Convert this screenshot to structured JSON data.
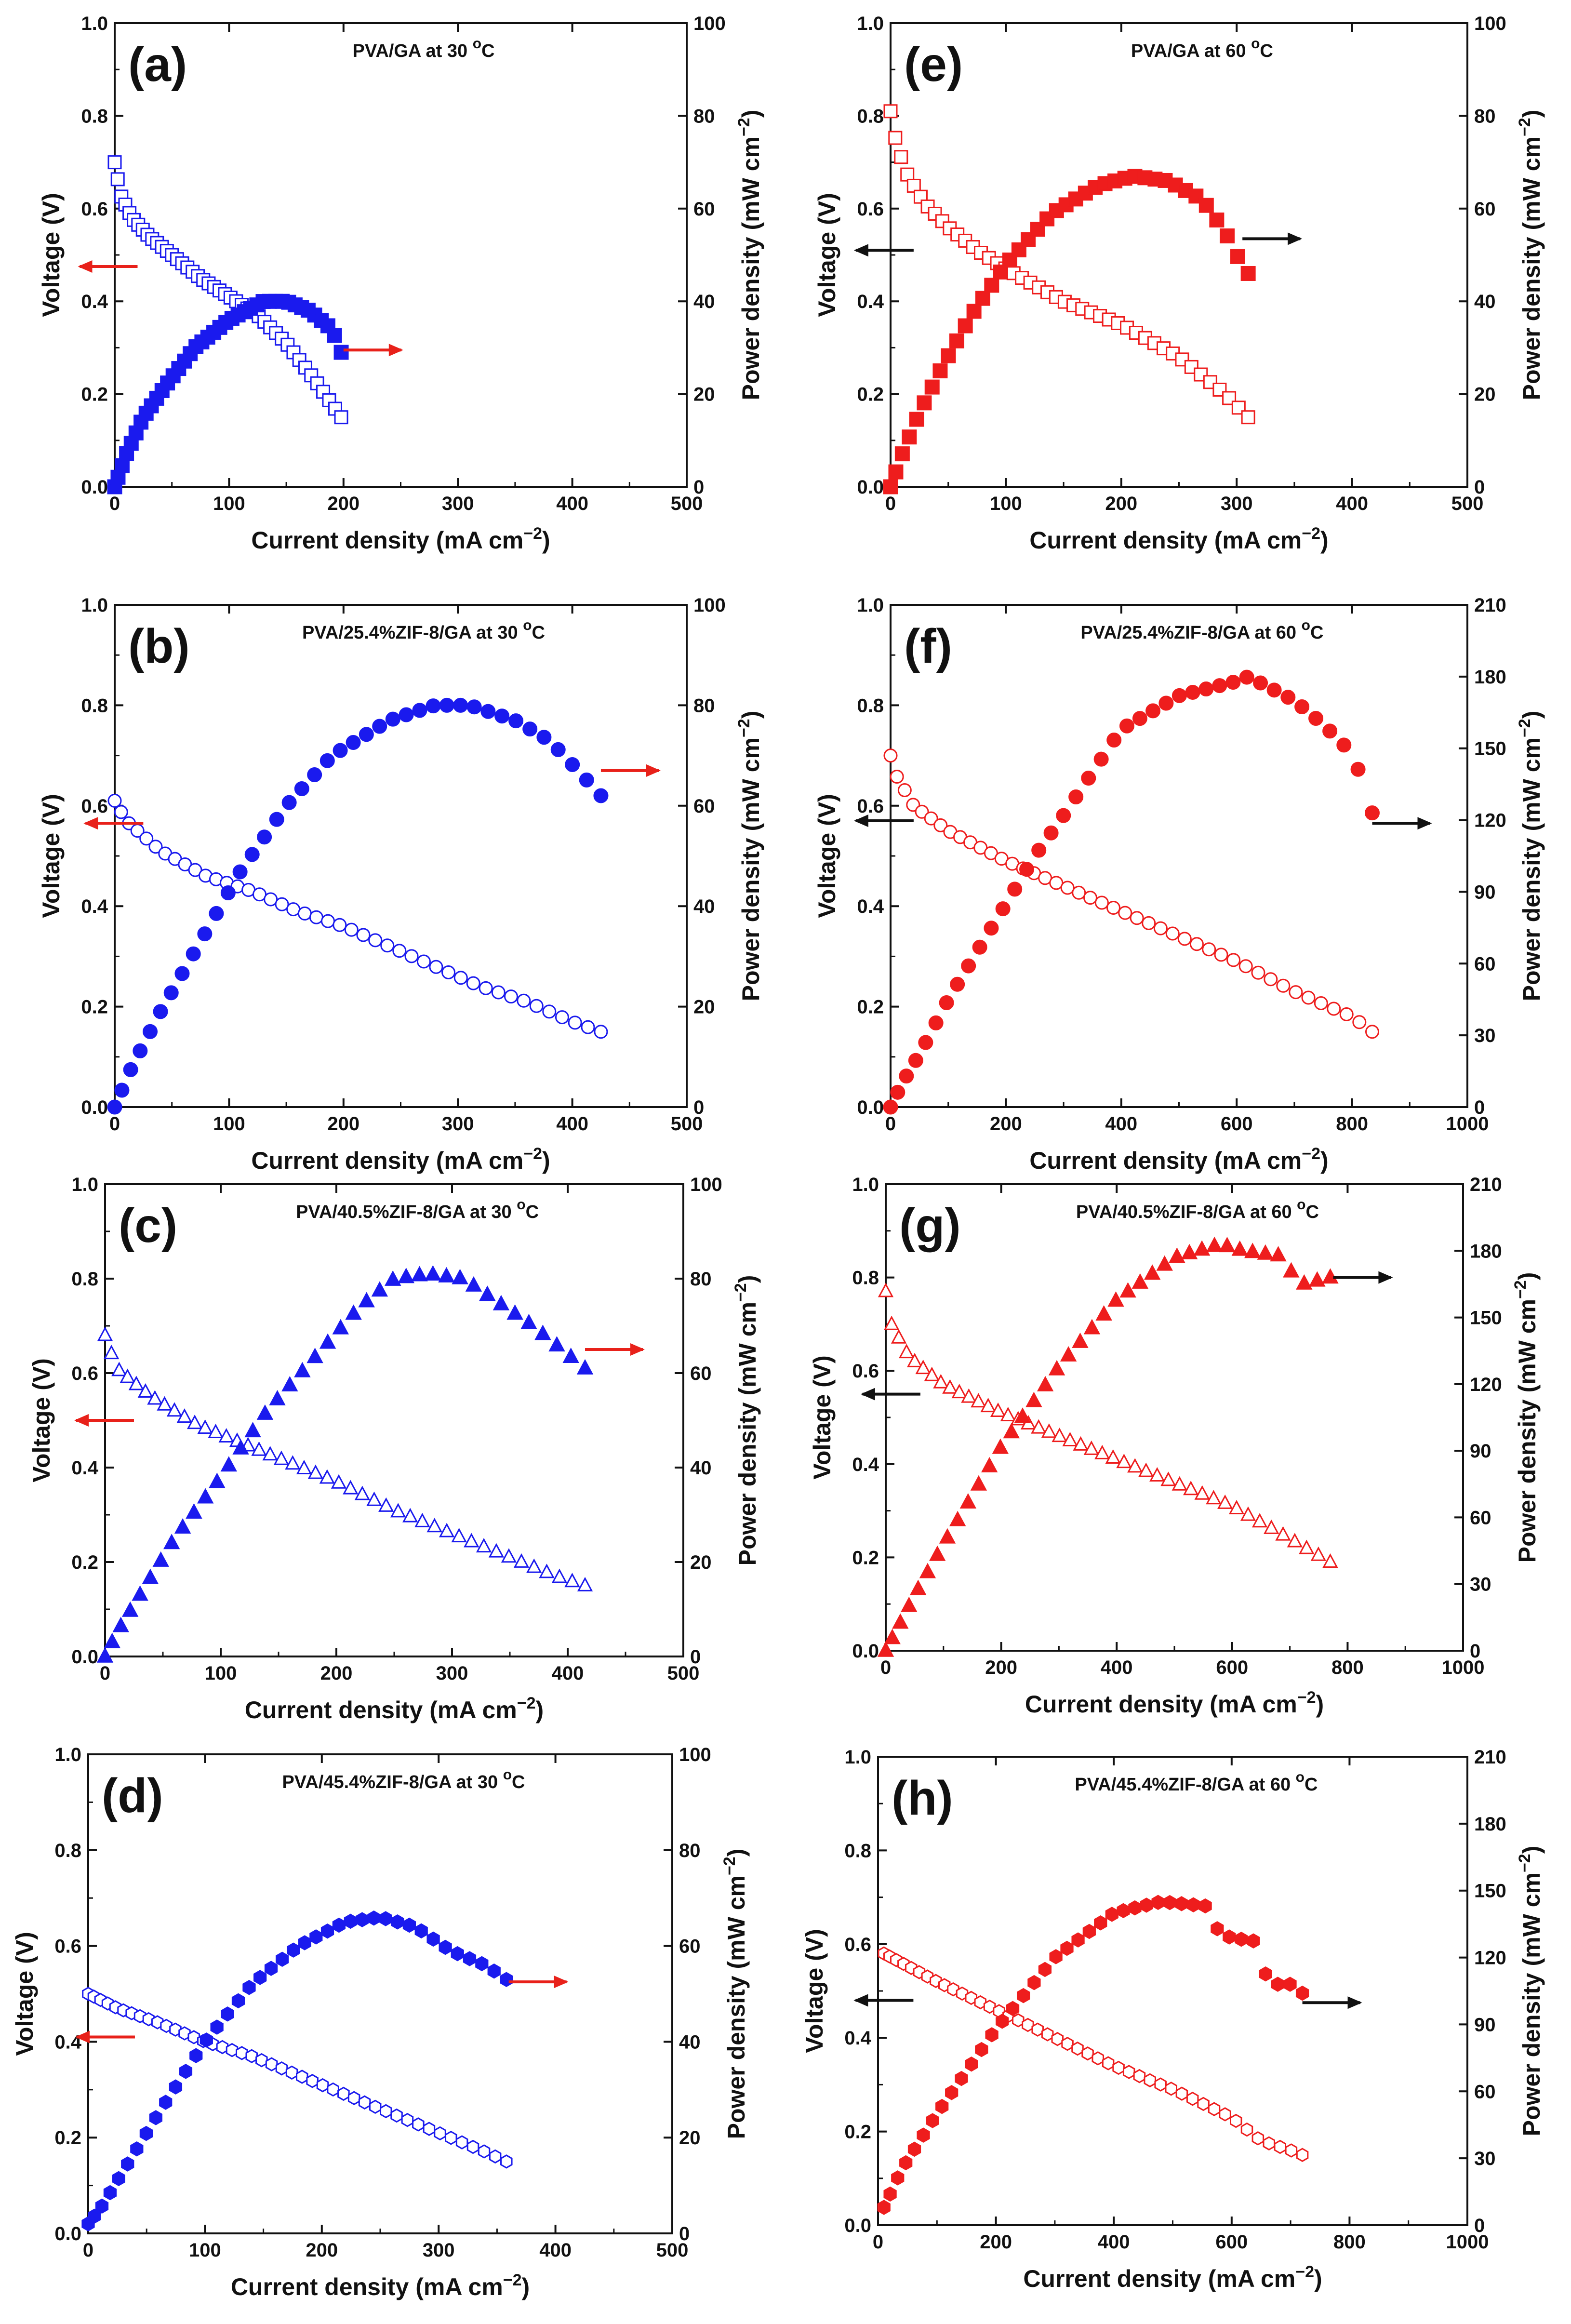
{
  "figure": {
    "x_unit_base": "mA cm",
    "y2_unit_base": "mW cm",
    "unit_exp": "−2"
  },
  "chart_data": [
    {
      "id": "a",
      "label": "(a)",
      "type": "scatter",
      "title": "PVA/GA at 30 °C",
      "title_main": "PVA/GA at 30 ",
      "title_deg": "o",
      "title_end": "C",
      "xlabel": "Current density (mA cm−2)",
      "ylabel": "Voltage (V)",
      "y2label": "Power density (mW cm−2)",
      "xlim": [
        0,
        500
      ],
      "ylim": [
        0,
        1.0
      ],
      "y2lim": [
        0,
        100
      ],
      "xticks": [
        0,
        100,
        200,
        300,
        400,
        500
      ],
      "yticks": [
        0.0,
        0.2,
        0.4,
        0.6,
        0.8,
        1.0
      ],
      "y2ticks": [
        0,
        20,
        40,
        60,
        80,
        100
      ],
      "color": "#1a1aee",
      "marker": "square",
      "voltage_points": [
        [
          0,
          0.7
        ],
        [
          5,
          0.63
        ],
        [
          15,
          0.58
        ],
        [
          30,
          0.54
        ],
        [
          50,
          0.5
        ],
        [
          75,
          0.45
        ],
        [
          100,
          0.41
        ],
        [
          125,
          0.37
        ],
        [
          150,
          0.31
        ],
        [
          175,
          0.23
        ],
        [
          198,
          0.15
        ]
      ],
      "power_points": [
        [
          0,
          0
        ],
        [
          10,
          7
        ],
        [
          25,
          15
        ],
        [
          45,
          22
        ],
        [
          70,
          30
        ],
        [
          100,
          36
        ],
        [
          130,
          40
        ],
        [
          150,
          40
        ],
        [
          170,
          38
        ],
        [
          190,
          34
        ],
        [
          198,
          29
        ]
      ],
      "voltage_arrow": {
        "at_x": 20,
        "at_y": 0.475,
        "dir": "left",
        "color": "#e8211a"
      },
      "power_arrow": {
        "at_x": 200,
        "at_y": 0.295,
        "dir": "right",
        "color": "#e8211a"
      }
    },
    {
      "id": "b",
      "label": "(b)",
      "type": "scatter",
      "title": "PVA/25.4%ZIF-8/GA at 30 °C",
      "title_main": "PVA/25.4%ZIF-8/GA at 30 ",
      "title_deg": "o",
      "title_end": "C",
      "xlabel": "Current density (mA cm−2)",
      "ylabel": "Voltage (V)",
      "y2label": "Power density (mW cm−2)",
      "xlim": [
        0,
        500
      ],
      "ylim": [
        0,
        1.0
      ],
      "y2lim": [
        0,
        100
      ],
      "xticks": [
        0,
        100,
        200,
        300,
        400,
        500
      ],
      "yticks": [
        0.0,
        0.2,
        0.4,
        0.6,
        0.8,
        1.0
      ],
      "y2ticks": [
        0,
        20,
        40,
        60,
        80,
        100
      ],
      "color": "#1a1aee",
      "marker": "circle",
      "voltage_points": [
        [
          0,
          0.61
        ],
        [
          10,
          0.57
        ],
        [
          40,
          0.51
        ],
        [
          80,
          0.46
        ],
        [
          120,
          0.43
        ],
        [
          160,
          0.39
        ],
        [
          200,
          0.36
        ],
        [
          240,
          0.32
        ],
        [
          280,
          0.28
        ],
        [
          320,
          0.24
        ],
        [
          360,
          0.21
        ],
        [
          400,
          0.17
        ],
        [
          425,
          0.15
        ]
      ],
      "power_points": [
        [
          0,
          0
        ],
        [
          15,
          8
        ],
        [
          40,
          19
        ],
        [
          75,
          33
        ],
        [
          110,
          47
        ],
        [
          150,
          60
        ],
        [
          190,
          70
        ],
        [
          240,
          77
        ],
        [
          280,
          80
        ],
        [
          310,
          80
        ],
        [
          350,
          77
        ],
        [
          380,
          73
        ],
        [
          405,
          67
        ],
        [
          425,
          62
        ]
      ],
      "voltage_arrow": {
        "at_x": 25,
        "at_y": 0.565,
        "dir": "left",
        "color": "#e8211a"
      },
      "power_arrow": {
        "at_x": 425,
        "at_y": 0.67,
        "dir": "right",
        "color": "#e8211a"
      }
    },
    {
      "id": "c",
      "label": "(c)",
      "type": "scatter",
      "title": "PVA/40.5%ZIF-8/GA at 30 °C",
      "title_main": "PVA/40.5%ZIF-8/GA at 30 ",
      "title_deg": "o",
      "title_end": "C",
      "xlabel": "Current density (mA cm−2)",
      "ylabel": "Voltage (V)",
      "y2label": "Power density (mW cm−2)",
      "xlim": [
        0,
        500
      ],
      "ylim": [
        0,
        1.0
      ],
      "y2lim": [
        0,
        100
      ],
      "xticks": [
        0,
        100,
        200,
        300,
        400,
        500
      ],
      "yticks": [
        0.0,
        0.2,
        0.4,
        0.6,
        0.8,
        1.0
      ],
      "y2ticks": [
        0,
        20,
        40,
        60,
        80,
        100
      ],
      "color": "#1a1aee",
      "marker": "triangle",
      "voltage_points": [
        [
          0,
          0.68
        ],
        [
          10,
          0.61
        ],
        [
          40,
          0.55
        ],
        [
          80,
          0.49
        ],
        [
          120,
          0.45
        ],
        [
          160,
          0.41
        ],
        [
          200,
          0.37
        ],
        [
          250,
          0.31
        ],
        [
          300,
          0.26
        ],
        [
          350,
          0.21
        ],
        [
          390,
          0.17
        ],
        [
          415,
          0.15
        ]
      ],
      "power_points": [
        [
          0,
          0
        ],
        [
          10,
          5
        ],
        [
          30,
          13
        ],
        [
          60,
          25
        ],
        [
          100,
          38
        ],
        [
          140,
          52
        ],
        [
          180,
          63
        ],
        [
          220,
          74
        ],
        [
          250,
          80
        ],
        [
          280,
          81
        ],
        [
          310,
          80
        ],
        [
          340,
          75
        ],
        [
          370,
          70
        ],
        [
          395,
          65
        ],
        [
          415,
          61
        ]
      ],
      "voltage_arrow": {
        "at_x": 25,
        "at_y": 0.5,
        "dir": "left",
        "color": "#e8211a"
      },
      "power_arrow": {
        "at_x": 415,
        "at_y": 0.65,
        "dir": "right",
        "color": "#e8211a"
      }
    },
    {
      "id": "d",
      "label": "(d)",
      "type": "scatter",
      "title": "PVA/45.4%ZIF-8/GA at 30 °C",
      "title_main": "PVA/45.4%ZIF-8/GA at 30 ",
      "title_deg": "o",
      "title_end": "C",
      "xlabel": "Current density (mA cm−2)",
      "ylabel": "Voltage (V)",
      "y2label": "Power density (mW cm−2)",
      "xlim": [
        0,
        500
      ],
      "ylim": [
        0,
        1.0
      ],
      "y2lim": [
        0,
        100
      ],
      "xticks": [
        0,
        100,
        200,
        300,
        400,
        500
      ],
      "yticks": [
        0.0,
        0.2,
        0.4,
        0.6,
        0.8,
        1.0
      ],
      "y2ticks": [
        0,
        20,
        40,
        60,
        80,
        100
      ],
      "color": "#1a1aee",
      "marker": "hexagon",
      "voltage_points": [
        [
          0,
          0.5
        ],
        [
          25,
          0.47
        ],
        [
          60,
          0.44
        ],
        [
          100,
          0.4
        ],
        [
          140,
          0.37
        ],
        [
          180,
          0.33
        ],
        [
          220,
          0.29
        ],
        [
          260,
          0.25
        ],
        [
          300,
          0.21
        ],
        [
          340,
          0.17
        ],
        [
          358,
          0.15
        ]
      ],
      "power_points": [
        [
          0,
          2
        ],
        [
          10,
          5
        ],
        [
          30,
          13
        ],
        [
          60,
          25
        ],
        [
          100,
          40
        ],
        [
          140,
          52
        ],
        [
          180,
          60
        ],
        [
          220,
          65
        ],
        [
          250,
          66
        ],
        [
          280,
          64
        ],
        [
          310,
          59
        ],
        [
          340,
          56
        ],
        [
          358,
          53
        ]
      ],
      "voltage_arrow": {
        "at_x": 40,
        "at_y": 0.41,
        "dir": "left",
        "color": "#e8211a"
      },
      "power_arrow": {
        "at_x": 360,
        "at_y": 0.525,
        "dir": "right",
        "color": "#e8211a"
      }
    },
    {
      "id": "e",
      "label": "(e)",
      "type": "scatter",
      "title": "PVA/GA at 60 °C",
      "title_main": "PVA/GA at 60 ",
      "title_deg": "o",
      "title_end": "C",
      "xlabel": "Current density (mA cm−2)",
      "ylabel": "Voltage (V)",
      "y2label": "Power density (mW cm−2)",
      "xlim": [
        0,
        500
      ],
      "ylim": [
        0,
        1.0
      ],
      "y2lim": [
        0,
        100
      ],
      "xticks": [
        0,
        100,
        200,
        300,
        400,
        500
      ],
      "yticks": [
        0.0,
        0.2,
        0.4,
        0.6,
        0.8,
        1.0
      ],
      "y2ticks": [
        0,
        20,
        40,
        60,
        80,
        100
      ],
      "color": "#ee1d1d",
      "marker": "square",
      "voltage_points": [
        [
          0,
          0.81
        ],
        [
          5,
          0.74
        ],
        [
          15,
          0.67
        ],
        [
          30,
          0.61
        ],
        [
          50,
          0.56
        ],
        [
          75,
          0.51
        ],
        [
          100,
          0.47
        ],
        [
          150,
          0.4
        ],
        [
          200,
          0.35
        ],
        [
          250,
          0.28
        ],
        [
          290,
          0.2
        ],
        [
          310,
          0.15
        ]
      ],
      "power_points": [
        [
          0,
          0
        ],
        [
          10,
          7
        ],
        [
          25,
          16
        ],
        [
          45,
          26
        ],
        [
          70,
          37
        ],
        [
          100,
          48
        ],
        [
          140,
          59
        ],
        [
          180,
          65
        ],
        [
          210,
          67
        ],
        [
          240,
          66
        ],
        [
          270,
          62
        ],
        [
          290,
          55
        ],
        [
          300,
          50
        ],
        [
          310,
          46
        ]
      ],
      "voltage_arrow": {
        "at_x": 20,
        "at_y": 0.51,
        "dir": "left",
        "color": "#111111"
      },
      "power_arrow": {
        "at_x": 305,
        "at_y": 0.535,
        "dir": "right",
        "color": "#111111"
      }
    },
    {
      "id": "f",
      "label": "(f)",
      "type": "scatter",
      "title": "PVA/25.4%ZIF-8/GA at 60 °C",
      "title_main": "PVA/25.4%ZIF-8/GA at 60 ",
      "title_deg": "o",
      "title_end": "C",
      "xlabel": "Current density (mA cm−2)",
      "ylabel": "Voltage (V)",
      "y2label": "Power density (mW cm−2)",
      "xlim": [
        0,
        1000
      ],
      "ylim": [
        0,
        1.0
      ],
      "y2lim": [
        0,
        210
      ],
      "xticks": [
        0,
        200,
        400,
        600,
        800,
        1000
      ],
      "yticks": [
        0.0,
        0.2,
        0.4,
        0.6,
        0.8,
        1.0
      ],
      "y2ticks": [
        0,
        30,
        60,
        90,
        120,
        150,
        180,
        210
      ],
      "color": "#ee1d1d",
      "marker": "circle",
      "voltage_points": [
        [
          0,
          0.7
        ],
        [
          10,
          0.66
        ],
        [
          40,
          0.6
        ],
        [
          100,
          0.55
        ],
        [
          200,
          0.49
        ],
        [
          300,
          0.44
        ],
        [
          400,
          0.39
        ],
        [
          500,
          0.34
        ],
        [
          600,
          0.29
        ],
        [
          700,
          0.23
        ],
        [
          800,
          0.18
        ],
        [
          835,
          0.15
        ]
      ],
      "power_points": [
        [
          0,
          0
        ],
        [
          20,
          10
        ],
        [
          50,
          22
        ],
        [
          100,
          45
        ],
        [
          150,
          65
        ],
        [
          200,
          85
        ],
        [
          250,
          105
        ],
        [
          300,
          122
        ],
        [
          400,
          158
        ],
        [
          500,
          172
        ],
        [
          600,
          178
        ],
        [
          620,
          180
        ],
        [
          700,
          170
        ],
        [
          750,
          160
        ],
        [
          800,
          148
        ],
        [
          820,
          135
        ],
        [
          835,
          123
        ]
      ],
      "voltage_arrow": {
        "at_x": 40,
        "at_y": 0.57,
        "dir": "left",
        "color": "#111111"
      },
      "power_arrow": {
        "at_x": 835,
        "at_y": 0.565,
        "dir": "right",
        "color": "#111111"
      }
    },
    {
      "id": "g",
      "label": "(g)",
      "type": "scatter",
      "title": "PVA/40.5%ZIF-8/GA at 60 °C",
      "title_main": "PVA/40.5%ZIF-8/GA at 60 ",
      "title_deg": "o",
      "title_end": "C",
      "xlabel": "Current density (mA cm−2)",
      "ylabel": "Voltage (V)",
      "y2label": "Power density (mW cm−2)",
      "xlim": [
        0,
        1000
      ],
      "ylim": [
        0,
        1.0
      ],
      "y2lim": [
        0,
        210
      ],
      "xticks": [
        0,
        200,
        400,
        600,
        800,
        1000
      ],
      "yticks": [
        0.0,
        0.2,
        0.4,
        0.6,
        0.8,
        1.0
      ],
      "y2ticks": [
        0,
        30,
        60,
        90,
        120,
        150,
        180,
        210
      ],
      "color": "#ee1d1d",
      "marker": "triangle",
      "voltage_points": [
        [
          0,
          0.77
        ],
        [
          10,
          0.7
        ],
        [
          40,
          0.63
        ],
        [
          100,
          0.57
        ],
        [
          200,
          0.51
        ],
        [
          300,
          0.46
        ],
        [
          400,
          0.41
        ],
        [
          500,
          0.36
        ],
        [
          600,
          0.31
        ],
        [
          700,
          0.24
        ],
        [
          770,
          0.19
        ]
      ],
      "power_points": [
        [
          0,
          0
        ],
        [
          20,
          10
        ],
        [
          50,
          25
        ],
        [
          100,
          48
        ],
        [
          150,
          70
        ],
        [
          200,
          92
        ],
        [
          300,
          128
        ],
        [
          400,
          158
        ],
        [
          500,
          177
        ],
        [
          580,
          183
        ],
        [
          620,
          180
        ],
        [
          680,
          178
        ],
        [
          720,
          165
        ],
        [
          770,
          168
        ]
      ],
      "voltage_arrow": {
        "at_x": 60,
        "at_y": 0.55,
        "dir": "left",
        "color": "#111111"
      },
      "power_arrow": {
        "at_x": 775,
        "at_y": 0.8,
        "dir": "right",
        "color": "#111111"
      }
    },
    {
      "id": "h",
      "label": "(h)",
      "type": "scatter",
      "title": "PVA/45.4%ZIF-8/GA at 60 °C",
      "title_main": "PVA/45.4%ZIF-8/GA at 60 ",
      "title_deg": "o",
      "title_end": "C",
      "xlabel": "Current density (mA cm−2)",
      "ylabel": "Voltage (V)",
      "y2label": "Power density (mW cm−2)",
      "xlim": [
        0,
        1000
      ],
      "ylim": [
        0,
        1.0
      ],
      "y2lim": [
        0,
        210
      ],
      "xticks": [
        0,
        200,
        400,
        600,
        800,
        1000
      ],
      "yticks": [
        0.0,
        0.2,
        0.4,
        0.6,
        0.8,
        1.0
      ],
      "y2ticks": [
        0,
        30,
        60,
        90,
        120,
        150,
        180,
        210
      ],
      "color": "#ee1d1d",
      "marker": "hexagon",
      "voltage_points": [
        [
          10,
          0.58
        ],
        [
          100,
          0.52
        ],
        [
          200,
          0.46
        ],
        [
          300,
          0.4
        ],
        [
          400,
          0.34
        ],
        [
          500,
          0.29
        ],
        [
          600,
          0.23
        ],
        [
          650,
          0.18
        ],
        [
          700,
          0.16
        ],
        [
          720,
          0.15
        ]
      ],
      "power_points": [
        [
          10,
          8
        ],
        [
          40,
          25
        ],
        [
          100,
          50
        ],
        [
          200,
          88
        ],
        [
          300,
          120
        ],
        [
          400,
          140
        ],
        [
          480,
          145
        ],
        [
          560,
          143
        ],
        [
          580,
          130
        ],
        [
          620,
          128
        ],
        [
          650,
          127
        ],
        [
          660,
          108
        ],
        [
          700,
          108
        ],
        [
          720,
          104
        ]
      ],
      "voltage_arrow": {
        "at_x": 60,
        "at_y": 0.48,
        "dir": "left",
        "color": "#111111"
      },
      "power_arrow": {
        "at_x": 720,
        "at_y": 0.475,
        "dir": "right",
        "color": "#111111"
      }
    }
  ]
}
